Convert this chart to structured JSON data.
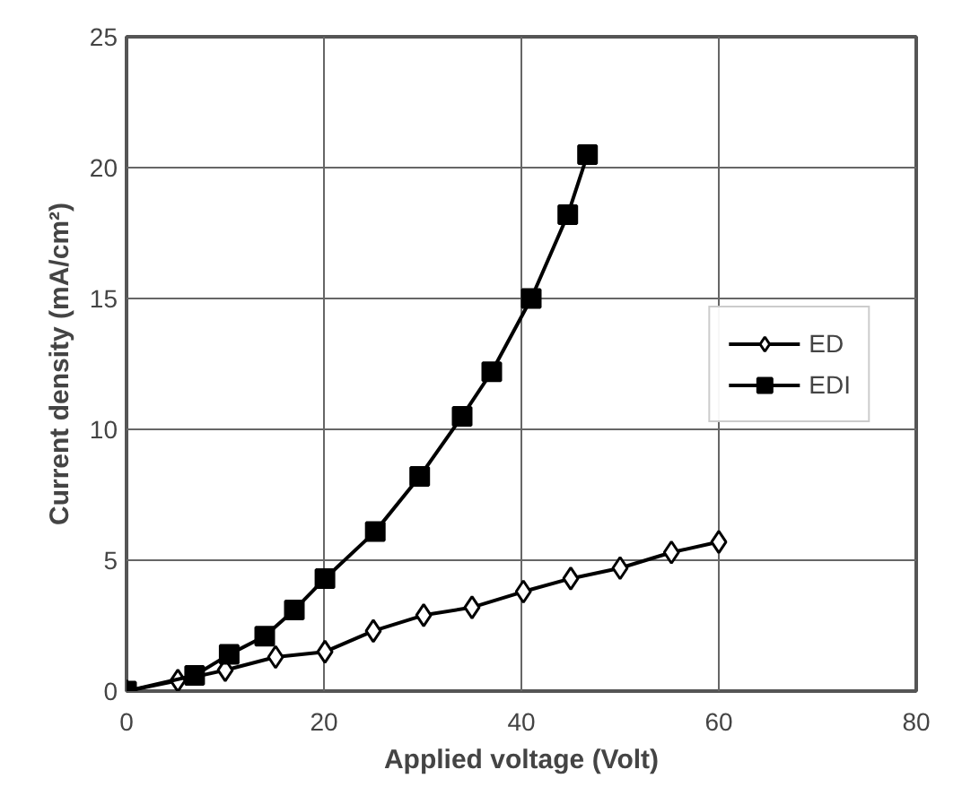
{
  "chart_data": {
    "type": "line",
    "xlabel": "Applied voltage (Volt)",
    "ylabel": "Current density (mA/cm²)",
    "xlim": [
      0,
      80
    ],
    "ylim": [
      0,
      25
    ],
    "xticks": [
      0,
      20,
      40,
      60,
      80
    ],
    "yticks": [
      0,
      5,
      10,
      15,
      20,
      25
    ],
    "grid": true,
    "legend": "right",
    "line_style": "solid",
    "series": [
      {
        "name": "ED",
        "color": "#000000",
        "marker": "diamond",
        "x": [
          0,
          5.2,
          10,
          15.1,
          20.1,
          25,
          30.1,
          35,
          40.2,
          45,
          50,
          55.2,
          60
        ],
        "values": [
          0,
          0.4,
          0.8,
          1.3,
          1.5,
          2.3,
          2.9,
          3.2,
          3.8,
          4.3,
          4.7,
          5.3,
          5.7
        ]
      },
      {
        "name": "EDI",
        "color": "#000000",
        "marker": "square",
        "x": [
          0,
          6.9,
          10.4,
          14,
          17,
          20.1,
          25.2,
          29.7,
          34,
          37,
          41,
          44.7,
          46.7
        ],
        "values": [
          0,
          0.6,
          1.4,
          2.1,
          3.1,
          4.3,
          6.1,
          8.2,
          10.5,
          12.2,
          15.0,
          18.2,
          20.5
        ]
      }
    ]
  }
}
